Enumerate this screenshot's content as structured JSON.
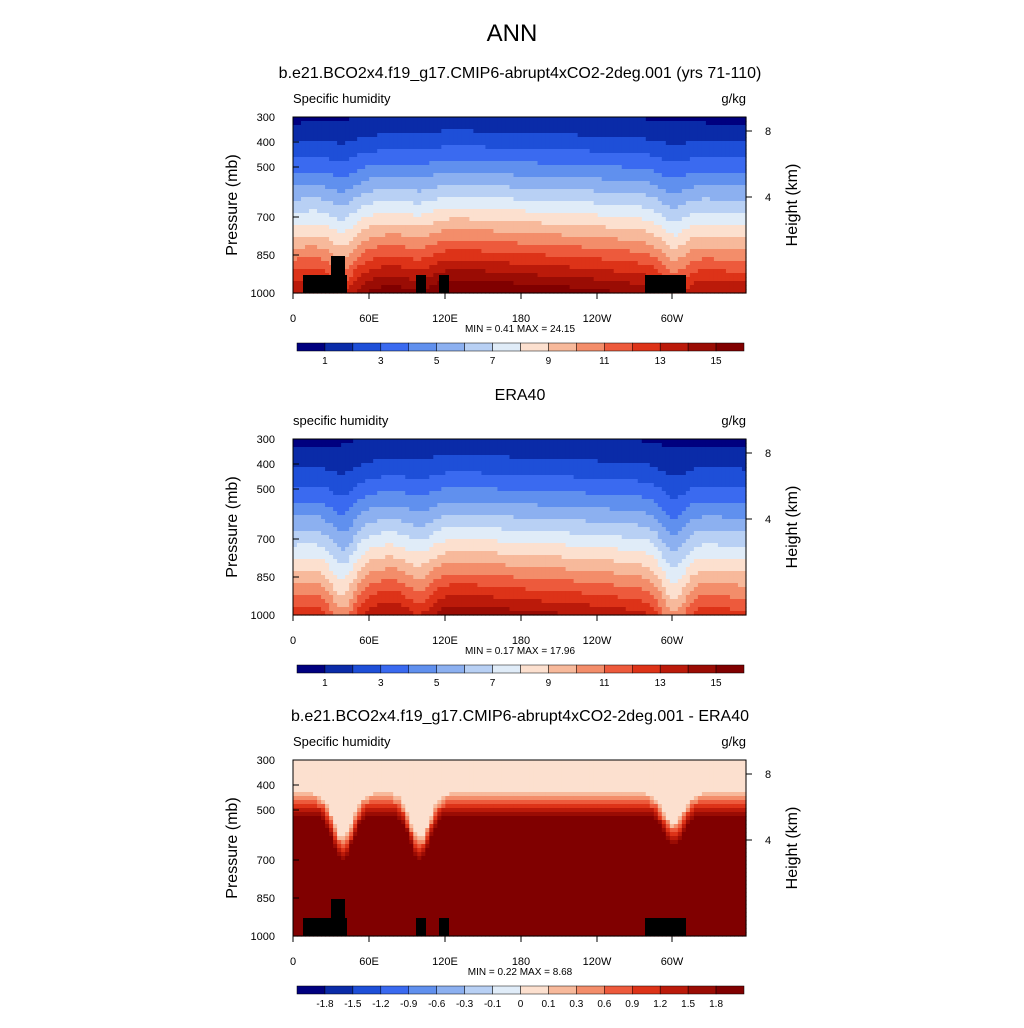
{
  "figure": {
    "title": "ANN"
  },
  "chart_data": [
    {
      "type": "heatmap",
      "title": "b.e21.BCO2x4.f19_g17.CMIP6-abrupt4xCO2-2deg.001 (yrs 71-110)",
      "variable": "Specific humidity",
      "units": "g/kg",
      "ylabel": "Pressure (mb)",
      "y2label": "Height (km)",
      "x_ticks": [
        "0",
        "60E",
        "120E",
        "180",
        "120W",
        "60W"
      ],
      "y_ticks": [
        "300",
        "400",
        "500",
        "700",
        "850",
        "1000"
      ],
      "y2_ticks": [
        "8",
        "4"
      ],
      "stats": "MIN =   0.41  MAX =  24.15",
      "min": 0.41,
      "max": 24.15,
      "colorbar_labels": [
        "1",
        "3",
        "5",
        "7",
        "9",
        "11",
        "13",
        "15"
      ],
      "contour_levels": [
        1,
        2,
        3,
        4,
        5,
        6,
        7,
        8,
        9,
        10,
        11,
        12,
        13,
        14,
        15
      ],
      "colormap": [
        "#00007f",
        "#0a2ba8",
        "#1e4fd8",
        "#3a6af0",
        "#6090ee",
        "#8cb0f0",
        "#b8d0f4",
        "#e0ecf8",
        "#fce0cf",
        "#f7b99b",
        "#f38d6a",
        "#ed5a3c",
        "#dd3318",
        "#bb1a0a",
        "#9a0c04",
        "#800000"
      ]
    },
    {
      "type": "heatmap",
      "title": "ERA40",
      "variable": "specific humidity",
      "units": "g/kg",
      "ylabel": "Pressure (mb)",
      "y2label": "Height (km)",
      "x_ticks": [
        "0",
        "60E",
        "120E",
        "180",
        "120W",
        "60W"
      ],
      "y_ticks": [
        "300",
        "400",
        "500",
        "700",
        "850",
        "1000"
      ],
      "y2_ticks": [
        "8",
        "4"
      ],
      "stats": "MIN =   0.17  MAX =  17.96",
      "min": 0.17,
      "max": 17.96,
      "colorbar_labels": [
        "1",
        "3",
        "5",
        "7",
        "9",
        "11",
        "13",
        "15"
      ],
      "contour_levels": [
        1,
        2,
        3,
        4,
        5,
        6,
        7,
        8,
        9,
        10,
        11,
        12,
        13,
        14,
        15
      ],
      "colormap": [
        "#00007f",
        "#0a2ba8",
        "#1e4fd8",
        "#3a6af0",
        "#6090ee",
        "#8cb0f0",
        "#b8d0f4",
        "#e0ecf8",
        "#fce0cf",
        "#f7b99b",
        "#f38d6a",
        "#ed5a3c",
        "#dd3318",
        "#bb1a0a",
        "#9a0c04",
        "#800000"
      ]
    },
    {
      "type": "heatmap",
      "title": "b.e21.BCO2x4.f19_g17.CMIP6-abrupt4xCO2-2deg.001 - ERA40",
      "variable": "Specific humidity",
      "units": "g/kg",
      "ylabel": "Pressure (mb)",
      "y2label": "Height (km)",
      "x_ticks": [
        "0",
        "60E",
        "120E",
        "180",
        "120W",
        "60W"
      ],
      "y_ticks": [
        "300",
        "400",
        "500",
        "700",
        "850",
        "1000"
      ],
      "y2_ticks": [
        "8",
        "4"
      ],
      "stats": "MIN =   0.22  MAX =   8.68",
      "min": 0.22,
      "max": 8.68,
      "colorbar_labels": [
        "-1.8",
        "-1.5",
        "-1.2",
        "-0.9",
        "-0.6",
        "-0.3",
        "-0.1",
        "0",
        "0.1",
        "0.3",
        "0.6",
        "0.9",
        "1.2",
        "1.5",
        "1.8"
      ],
      "contour_levels": [
        -1.8,
        -1.5,
        -1.2,
        -0.9,
        -0.6,
        -0.3,
        -0.1,
        0,
        0.1,
        0.3,
        0.6,
        0.9,
        1.2,
        1.5,
        1.8
      ],
      "colormap": [
        "#00007f",
        "#0a2ba8",
        "#1e4fd8",
        "#3a6af0",
        "#6090ee",
        "#8cb0f0",
        "#b8d0f4",
        "#e0ecf8",
        "#fce0cf",
        "#f7b99b",
        "#f38d6a",
        "#ed5a3c",
        "#dd3318",
        "#bb1a0a",
        "#9a0c04",
        "#800000"
      ]
    }
  ]
}
